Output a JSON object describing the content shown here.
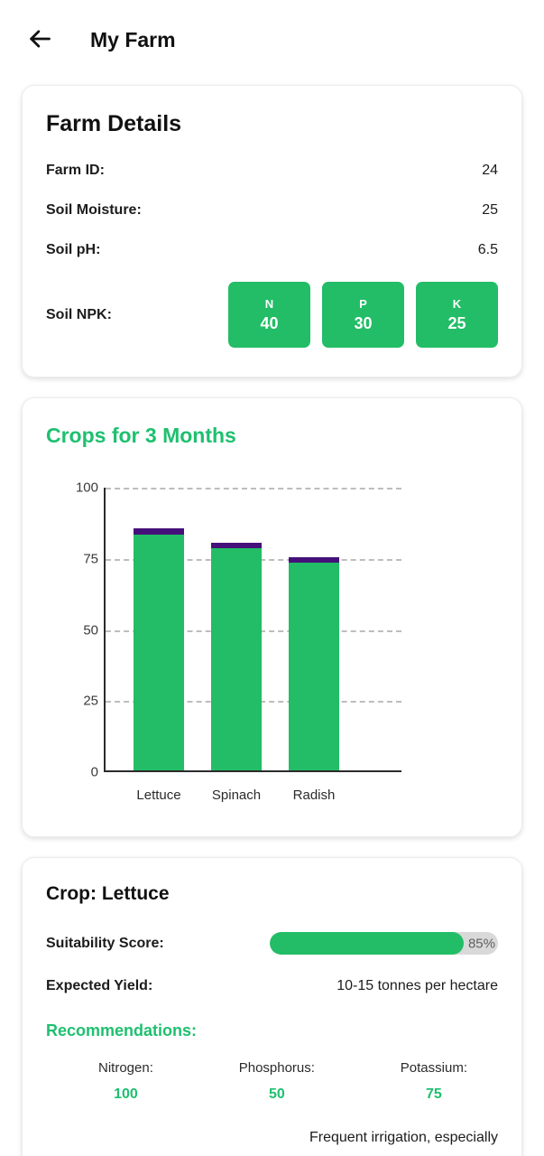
{
  "header": {
    "title": "My Farm",
    "back_icon": "arrow-left"
  },
  "farm_details": {
    "title": "Farm Details",
    "rows": [
      {
        "label": "Farm ID:",
        "value": "24"
      },
      {
        "label": "Soil Moisture:",
        "value": "25"
      },
      {
        "label": "Soil pH:",
        "value": "6.5"
      }
    ],
    "npk_label": "Soil NPK:",
    "npk": [
      {
        "letter": "N",
        "value": "40"
      },
      {
        "letter": "P",
        "value": "30"
      },
      {
        "letter": "K",
        "value": "25"
      }
    ]
  },
  "chart_card": {
    "title": "Crops for 3 Months"
  },
  "chart_data": {
    "type": "bar",
    "categories": [
      "Lettuce",
      "Spinach",
      "Radish"
    ],
    "series": [
      {
        "name": "score",
        "values": [
          83,
          78,
          73
        ],
        "color": "#22bd66"
      },
      {
        "name": "top-cap",
        "values": [
          2,
          2,
          2
        ],
        "color": "#45107a"
      }
    ],
    "totals": [
      85,
      80,
      75
    ],
    "yticks": [
      0,
      25,
      50,
      75,
      100
    ],
    "ylim": [
      0,
      100
    ],
    "grid": "dashed-horizontal",
    "title": "Crops for 3 Months",
    "xlabel": "",
    "ylabel": ""
  },
  "crop_card": {
    "title": "Crop: Lettuce",
    "suitability_label": "Suitability Score:",
    "suitability_value": 85,
    "suitability_text": "85%",
    "yield_label": "Expected Yield:",
    "yield_value": "10-15 tonnes per hectare",
    "recommendations_title": "Recommendations:",
    "nutrients": [
      {
        "label": "Nitrogen:",
        "value": "100"
      },
      {
        "label": "Phosphorus:",
        "value": "50"
      },
      {
        "label": "Potassium:",
        "value": "75"
      }
    ],
    "note": "Frequent irrigation, especially"
  },
  "colors": {
    "accent_green": "#22bd66",
    "heading_green": "#1ec06f",
    "bar_cap_purple": "#45107a",
    "track_gray": "#d9d9d9"
  }
}
